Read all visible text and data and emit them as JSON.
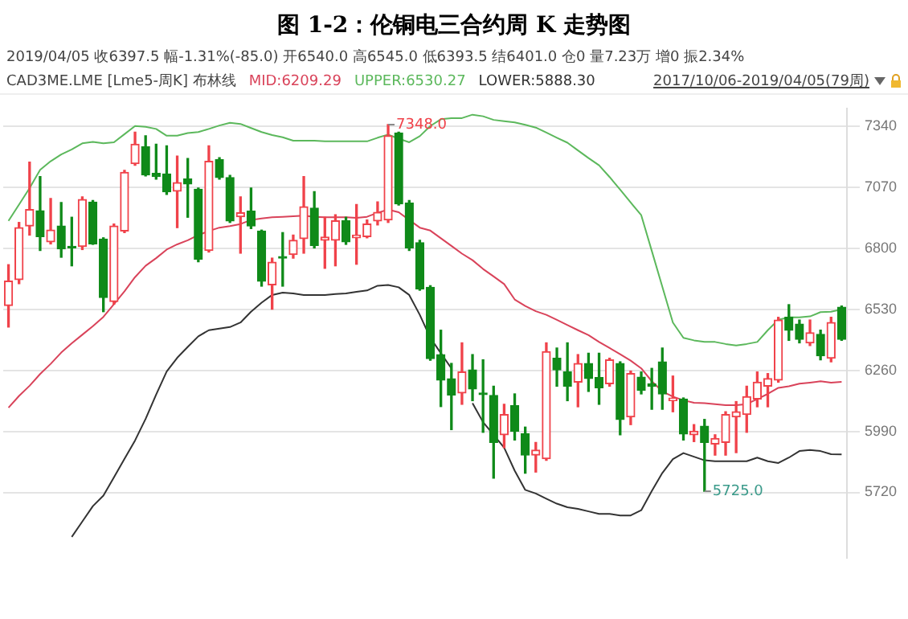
{
  "chart_data": {
    "type": "candlestick",
    "title": "图 1-2：伦铜电三合约周 K 走势图",
    "annotations": [
      "2019/04/05 收6397.5 幅-1.31%(-85.0) 开6540.0 高6545.0 低6393.5 结6401.0 仓0 量7.23万 增0 振2.34%",
      "CAD3ME.LME [Lme5-周K] 布林线",
      "2017/10/06-2019/04/05(79周)",
      "7348.0",
      "5725.0"
    ],
    "categories": [
      null,
      null,
      null,
      null,
      null,
      null,
      null,
      null,
      null,
      null,
      null,
      null,
      null,
      null,
      null,
      null,
      null,
      null,
      null,
      null,
      null,
      null,
      null,
      null,
      null,
      null,
      null,
      null,
      null,
      null,
      null,
      null,
      null,
      null,
      null,
      null,
      null,
      null,
      null,
      null,
      null,
      null,
      null,
      null,
      null,
      null,
      null,
      null,
      null,
      null,
      null,
      null,
      null,
      null,
      null,
      null,
      null,
      null,
      null,
      null,
      null,
      null,
      null,
      null,
      null,
      null,
      null,
      null,
      null,
      null,
      null,
      null,
      null,
      null,
      null,
      null,
      null,
      null,
      null,
      null
    ],
    "ohlc": [
      [
        6547,
        6728,
        6452,
        6655
      ],
      [
        6662,
        6915,
        6644,
        6892
      ],
      [
        6899,
        7182,
        6859,
        6972
      ],
      [
        6967,
        7118,
        6791,
        6852
      ],
      [
        6829,
        7021,
        6820,
        6881
      ],
      [
        6899,
        7003,
        6761,
        6798
      ],
      [
        6809,
        6938,
        6723,
        6802
      ],
      [
        6809,
        7028,
        6795,
        7017
      ],
      [
        7005,
        7012,
        6818,
        6820
      ],
      [
        6841,
        6847,
        6520,
        6583
      ],
      [
        6565,
        6908,
        6553,
        6899
      ],
      [
        6877,
        7146,
        6870,
        7137
      ],
      [
        7175,
        7315,
        7168,
        7261
      ],
      [
        7250,
        7299,
        7121,
        7125
      ],
      [
        7132,
        7261,
        7107,
        7118
      ],
      [
        7130,
        7254,
        7039,
        7051
      ],
      [
        7053,
        7209,
        6892,
        7091
      ],
      [
        7107,
        7198,
        6938,
        7085
      ],
      [
        7062,
        7067,
        6741,
        6752
      ],
      [
        6791,
        7254,
        6784,
        7186
      ],
      [
        7193,
        7202,
        7107,
        7114
      ],
      [
        7114,
        7123,
        6915,
        6922
      ],
      [
        6940,
        7028,
        6779,
        6958
      ],
      [
        6965,
        7067,
        6888,
        6899
      ],
      [
        6877,
        6881,
        6633,
        6655
      ],
      [
        6639,
        6757,
        6531,
        6739
      ],
      [
        6761,
        6870,
        6633,
        6757
      ],
      [
        6773,
        6859,
        6757,
        6836
      ],
      [
        6843,
        7118,
        6779,
        6985
      ],
      [
        6978,
        7051,
        6802,
        6813
      ],
      [
        6836,
        6938,
        6712,
        6850
      ],
      [
        6836,
        6949,
        6723,
        6922
      ],
      [
        6922,
        6938,
        6818,
        6829
      ],
      [
        6847,
        6994,
        6730,
        6859
      ],
      [
        6852,
        6926,
        6847,
        6908
      ],
      [
        6922,
        7006,
        6904,
        6960
      ],
      [
        6926,
        7348,
        6915,
        7299
      ],
      [
        7311,
        7315,
        6992,
        6997
      ],
      [
        7001,
        7012,
        6791,
        6802
      ],
      [
        6825,
        6836,
        6615,
        6621
      ],
      [
        6628,
        6635,
        6305,
        6312
      ],
      [
        6330,
        6438,
        6100,
        6217
      ],
      [
        6223,
        6291,
        5998,
        6151
      ],
      [
        6160,
        6382,
        6110,
        6253
      ],
      [
        6262,
        6330,
        6126,
        6178
      ],
      [
        6160,
        6307,
        5986,
        6153
      ],
      [
        6149,
        6190,
        5783,
        5941
      ],
      [
        5975,
        6110,
        5918,
        6065
      ],
      [
        6104,
        6156,
        5952,
        5991
      ],
      [
        5979,
        6009,
        5805,
        5885
      ],
      [
        5885,
        5941,
        5810,
        5907
      ],
      [
        5869,
        6382,
        5862,
        6343
      ],
      [
        6314,
        6359,
        6190,
        6262
      ],
      [
        6253,
        6382,
        6126,
        6190
      ],
      [
        6208,
        6330,
        6099,
        6291
      ],
      [
        6291,
        6336,
        6167,
        6224
      ],
      [
        6228,
        6336,
        6110,
        6183
      ],
      [
        6201,
        6314,
        6190,
        6307
      ],
      [
        6291,
        6298,
        5975,
        6043
      ],
      [
        6054,
        6257,
        6020,
        6246
      ],
      [
        6230,
        6253,
        6156,
        6172
      ],
      [
        6201,
        6269,
        6088,
        6190
      ],
      [
        6298,
        6359,
        6088,
        6156
      ],
      [
        6126,
        6235,
        6077,
        6138
      ],
      [
        6133,
        6138,
        5952,
        5979
      ],
      [
        5975,
        6020,
        5945,
        5991
      ],
      [
        6013,
        6043,
        5725,
        5941
      ],
      [
        5934,
        5975,
        5885,
        5959
      ],
      [
        5941,
        6077,
        5885,
        6065
      ],
      [
        6054,
        6122,
        5896,
        6077
      ],
      [
        6065,
        6190,
        5986,
        6144
      ],
      [
        6133,
        6253,
        6099,
        6208
      ],
      [
        6190,
        6246,
        6099,
        6224
      ],
      [
        6217,
        6495,
        6208,
        6483
      ],
      [
        6495,
        6551,
        6393,
        6438
      ],
      [
        6465,
        6483,
        6382,
        6398
      ],
      [
        6382,
        6483,
        6370,
        6427
      ],
      [
        6420,
        6438,
        6307,
        6325
      ],
      [
        6314,
        6495,
        6298,
        6472
      ],
      [
        6540,
        6545,
        6393.5,
        6397.5
      ]
    ],
    "series": [
      {
        "name": "MID:6209.29",
        "type": "line",
        "color": "#d9435a",
        "values": [
          6095,
          6147,
          6192,
          6244,
          6289,
          6339,
          6380,
          6418,
          6456,
          6497,
          6553,
          6610,
          6673,
          6723,
          6757,
          6795,
          6818,
          6836,
          6859,
          6877,
          6892,
          6899,
          6908,
          6926,
          6933,
          6938,
          6940,
          6942,
          6945,
          6940,
          6938,
          6938,
          6938,
          6935,
          6940,
          6958,
          6972,
          6960,
          6926,
          6892,
          6879,
          6845,
          6811,
          6777,
          6748,
          6709,
          6676,
          6642,
          6574,
          6545,
          6522,
          6506,
          6484,
          6461,
          6438,
          6416,
          6386,
          6359,
          6332,
          6303,
          6269,
          6212,
          6167,
          6144,
          6128,
          6117,
          6115,
          6111,
          6106,
          6106,
          6111,
          6133,
          6156,
          6183,
          6190,
          6201,
          6206,
          6212,
          6206,
          6209
        ]
      },
      {
        "name": "UPPER:6530.27",
        "type": "line",
        "color": "#5cb85c",
        "values": [
          6922,
          6994,
          7067,
          7148,
          7186,
          7216,
          7238,
          7265,
          7272,
          7265,
          7270,
          7306,
          7342,
          7338,
          7329,
          7299,
          7299,
          7311,
          7315,
          7329,
          7344,
          7356,
          7351,
          7333,
          7315,
          7302,
          7292,
          7277,
          7277,
          7277,
          7274,
          7274,
          7274,
          7274,
          7274,
          7290,
          7304,
          7286,
          7270,
          7297,
          7342,
          7372,
          7377,
          7377,
          7392,
          7385,
          7369,
          7363,
          7358,
          7347,
          7335,
          7313,
          7290,
          7268,
          7234,
          7200,
          7168,
          7116,
          7060,
          7003,
          6947,
          6789,
          6630,
          6472,
          6404,
          6393,
          6386,
          6386,
          6377,
          6370,
          6377,
          6386,
          6438,
          6484,
          6495,
          6495,
          6499,
          6518,
          6520,
          6530
        ]
      },
      {
        "name": "LOWER:5888.30",
        "type": "line",
        "color": "#333333",
        "values": [
          null,
          null,
          null,
          null,
          null,
          null,
          5523,
          5591,
          5659,
          5706,
          5787,
          5869,
          5950,
          6045,
          6153,
          6255,
          6316,
          6364,
          6411,
          6438,
          6445,
          6452,
          6472,
          6520,
          6560,
          6594,
          6604,
          6601,
          6594,
          6594,
          6594,
          6598,
          6601,
          6608,
          6614,
          6635,
          6638,
          6628,
          6594,
          6506,
          6404,
          6336,
          6269,
          null,
          6115,
          6031,
          5975,
          5918,
          5816,
          5731,
          5715,
          5692,
          5670,
          5654,
          5647,
          5636,
          5625,
          5625,
          5618,
          5618,
          5641,
          5726,
          5806,
          5867,
          5894,
          5878,
          5862,
          5858,
          5858,
          5858,
          5858,
          5874,
          5858,
          5850,
          5874,
          5903,
          5908,
          5903,
          5889,
          5888
        ]
      }
    ],
    "ylim": [
      5430,
      7420
    ],
    "yticks": [
      5720,
      5990,
      6260,
      6530,
      6800,
      7070,
      7340
    ],
    "grid": "y",
    "legend": "top left",
    "tick_labels": "y",
    "marker": "none",
    "line_style": "solid"
  }
}
